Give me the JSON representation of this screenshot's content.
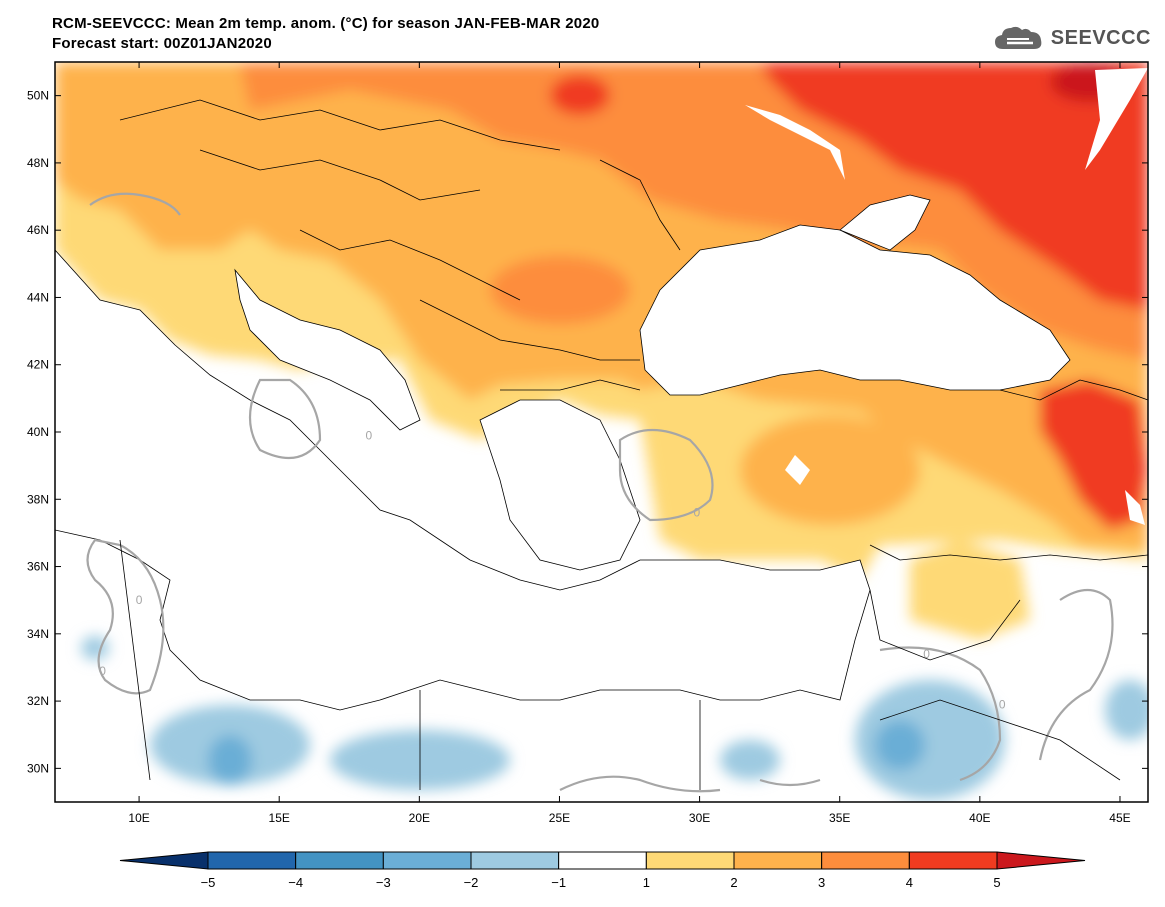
{
  "header": {
    "title_line1": "RCM-SEEVCCC: Mean 2m temp. anom. (°C) for season JAN-FEB-MAR 2020",
    "title_line2": "Forecast start: 00Z01JAN2020"
  },
  "logo": {
    "text": "SEEVCCC",
    "icon": "cloud-logo-icon"
  },
  "map": {
    "lon_range": [
      7,
      46
    ],
    "lat_range": [
      29,
      51
    ],
    "lon_ticks": [
      {
        "value": 10,
        "label": "10E"
      },
      {
        "value": 15,
        "label": "15E"
      },
      {
        "value": 20,
        "label": "20E"
      },
      {
        "value": 25,
        "label": "25E"
      },
      {
        "value": 30,
        "label": "30E"
      },
      {
        "value": 35,
        "label": "35E"
      },
      {
        "value": 40,
        "label": "40E"
      },
      {
        "value": 45,
        "label": "45E"
      }
    ],
    "lat_ticks": [
      {
        "value": 50,
        "label": "50N"
      },
      {
        "value": 48,
        "label": "48N"
      },
      {
        "value": 46,
        "label": "46N"
      },
      {
        "value": 44,
        "label": "44N"
      },
      {
        "value": 42,
        "label": "42N"
      },
      {
        "value": 40,
        "label": "40N"
      },
      {
        "value": 38,
        "label": "38N"
      },
      {
        "value": 36,
        "label": "36N"
      },
      {
        "value": 34,
        "label": "34N"
      },
      {
        "value": 32,
        "label": "32N"
      },
      {
        "value": 30,
        "label": "30N"
      }
    ],
    "contour_labels": [
      {
        "lon": 10,
        "lat": 35.0,
        "text": "0"
      },
      {
        "lon": 8.7,
        "lat": 32.9,
        "text": "0"
      },
      {
        "lon": 18.2,
        "lat": 39.9,
        "text": "0"
      },
      {
        "lon": 29.9,
        "lat": 37.6,
        "text": "0"
      },
      {
        "lon": 38.1,
        "lat": 33.4,
        "text": "0"
      },
      {
        "lon": 40.8,
        "lat": 31.9,
        "text": "0"
      }
    ]
  },
  "colorbar": {
    "levels": [
      "−5",
      "−4",
      "−3",
      "−2",
      "−1",
      "1",
      "2",
      "3",
      "4",
      "5"
    ],
    "colors": [
      "#08306b",
      "#2166ac",
      "#4393c3",
      "#6baed6",
      "#9ecae1",
      "#ffffff",
      "#fed976",
      "#feb24c",
      "#fd8d3c",
      "#f03b20",
      "#cb181d"
    ]
  }
}
